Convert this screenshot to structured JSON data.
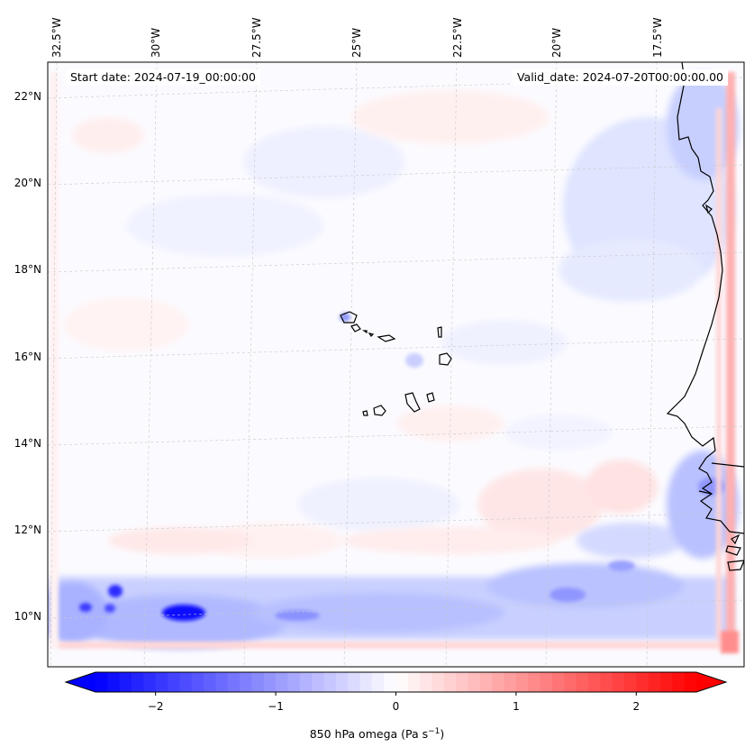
{
  "header": {
    "start_date": "Start date: 2024-07-19_00:00:00",
    "valid_date": "Valid_date: 2024-07-20T00:00:00.00"
  },
  "map": {
    "projection": "Lambert",
    "variable": "850 hPa omega",
    "units": "Pa s^-1",
    "lon_tick_labels": [
      "32.5°W",
      "30°W",
      "27.5°W",
      "25°W",
      "22.5°W",
      "20°W",
      "17.5°W"
    ],
    "lat_tick_labels": [
      "22°N",
      "20°N",
      "18°N",
      "16°N",
      "14°N",
      "12°N",
      "10°N"
    ],
    "features": [
      "Cabo Verde islands",
      "West African coastline"
    ]
  },
  "colorbar": {
    "label_prefix": "850 hPa omega (Pa s",
    "label_exp": "−1",
    "label_suffix": ")",
    "ticks": [
      "−2",
      "−1",
      "0",
      "1",
      "2"
    ],
    "tick_values": [
      -2,
      -1,
      0,
      1,
      2
    ],
    "range": [
      -2.5,
      2.5
    ],
    "extend": "both",
    "colormap": "bwr",
    "colors": {
      "low": "#0000ff",
      "mid": "#ffffff",
      "high": "#ff0000"
    }
  }
}
